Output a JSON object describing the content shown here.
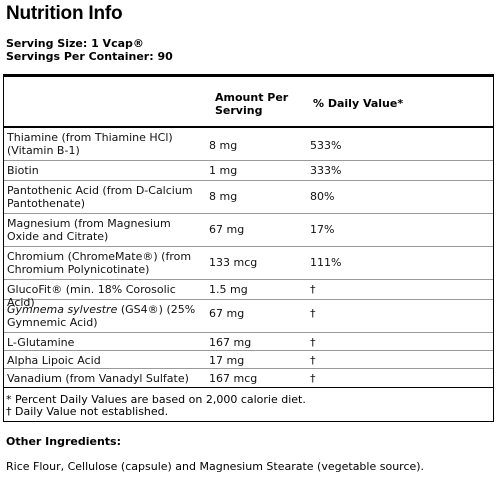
{
  "title": "Nutrition Info",
  "serving_size": "Serving Size: 1 Vcap®",
  "servings_per_container": "Servings Per Container: 90",
  "table": {
    "col_amount": "Amount Per Serving",
    "col_dv": "% Daily Value*",
    "rows": [
      {
        "name": "Thiamine (from Thiamine HCl) (Vitamin B-1)",
        "amount": "8 mg",
        "dv": "533%"
      },
      {
        "name": "Biotin",
        "amount": "1 mg",
        "dv": "333%"
      },
      {
        "name": "Pantothenic Acid (from D-Calcium Pantothenate)",
        "amount": "8 mg",
        "dv": "80%"
      },
      {
        "name": "Magnesium (from Magnesium Oxide and Citrate)",
        "amount": "67 mg",
        "dv": "17%"
      },
      {
        "name": "Chromium (ChromeMate®) (from Chromium Polynicotinate)",
        "amount": "133 mcg",
        "dv": "111%"
      },
      {
        "name": "GlucoFit® (min. 18% Corosolic Acid)",
        "amount": "1.5 mg",
        "dv": "†"
      },
      {
        "name_italic": "Gymnema sylvestre",
        "name": " (GS4®) (25% Gymnemic Acid)",
        "amount": "67 mg",
        "dv": "†"
      },
      {
        "name": "L-Glutamine",
        "amount": "167 mg",
        "dv": "†"
      },
      {
        "name": "Alpha Lipoic Acid",
        "amount": "17 mg",
        "dv": "†"
      },
      {
        "name": "Vanadium (from Vanadyl Sulfate)",
        "amount": "167 mcg",
        "dv": "†"
      }
    ]
  },
  "footnote_1": "* Percent Daily Values are based on 2,000 calorie diet.",
  "footnote_2": "† Daily Value not established.",
  "other_ingredients_heading": "Other Ingredients:",
  "other_ingredients_text": "Rice Flour, Cellulose (capsule) and Magnesium Stearate (vegetable source)."
}
